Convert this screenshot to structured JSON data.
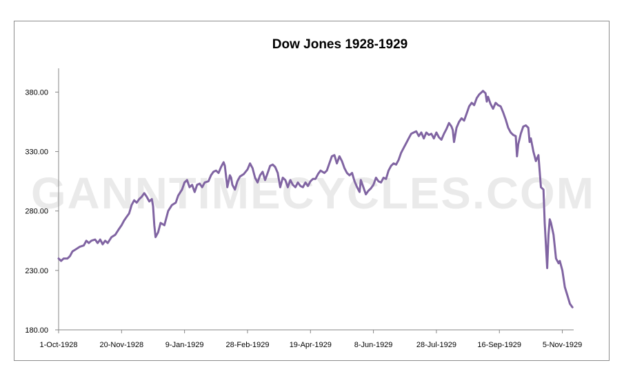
{
  "chart_data": {
    "type": "line",
    "title": "Dow Jones 1928-1929",
    "xlabel": "",
    "ylabel": "",
    "watermark": "GANNTIMECYCLES.COM",
    "line_color": "#8064a2",
    "x_range": [
      "1-Oct-1928",
      "14-Nov-1929"
    ],
    "ylim": [
      180,
      400
    ],
    "y_ticks": [
      180,
      230,
      280,
      330,
      380
    ],
    "y_tick_labels": [
      "180.00",
      "230.00",
      "280.00",
      "330.00",
      "380.00"
    ],
    "x_ticks": [
      "1-Oct-1928",
      "20-Nov-1928",
      "9-Jan-1929",
      "28-Feb-1929",
      "19-Apr-1929",
      "8-Jun-1929",
      "28-Jul-1929",
      "16-Sep-1929",
      "5-Nov-1929"
    ],
    "x_tick_labels": [
      "1-Oct-1928",
      "20-Nov-1928",
      "9-Jan-1929",
      "28-Feb-1929",
      "19-Apr-1929",
      "8-Jun-1929",
      "28-Jul-1929",
      "16-Sep-1929",
      "5-Nov-1929"
    ],
    "grid": false,
    "legend": "none",
    "series": [
      {
        "points": [
          [
            "1-Oct-1928",
            240
          ],
          [
            "3-Oct-1928",
            238
          ],
          [
            "5-Oct-1928",
            240
          ],
          [
            "8-Oct-1928",
            240
          ],
          [
            "10-Oct-1928",
            242
          ],
          [
            "12-Oct-1928",
            246
          ],
          [
            "15-Oct-1928",
            248
          ],
          [
            "18-Oct-1928",
            250
          ],
          [
            "21-Oct-1928",
            251
          ],
          [
            "23-Oct-1928",
            255
          ],
          [
            "25-Oct-1928",
            253
          ],
          [
            "27-Oct-1928",
            255
          ],
          [
            "30-Oct-1928",
            256
          ],
          [
            "1-Nov-1928",
            253
          ],
          [
            "3-Nov-1928",
            256
          ],
          [
            "5-Nov-1928",
            252
          ],
          [
            "7-Nov-1928",
            255
          ],
          [
            "9-Nov-1928",
            253
          ],
          [
            "12-Nov-1928",
            258
          ],
          [
            "15-Nov-1928",
            260
          ],
          [
            "18-Nov-1928",
            265
          ],
          [
            "20-Nov-1928",
            268
          ],
          [
            "22-Nov-1928",
            272
          ],
          [
            "24-Nov-1928",
            275
          ],
          [
            "26-Nov-1928",
            278
          ],
          [
            "28-Nov-1928",
            285
          ],
          [
            "30-Nov-1928",
            289
          ],
          [
            "2-Dec-1928",
            287
          ],
          [
            "4-Dec-1928",
            290
          ],
          [
            "6-Dec-1928",
            292
          ],
          [
            "8-Dec-1928",
            295
          ],
          [
            "10-Dec-1928",
            292
          ],
          [
            "12-Dec-1928",
            288
          ],
          [
            "14-Dec-1928",
            290
          ],
          [
            "15-Dec-1928",
            284
          ],
          [
            "16-Dec-1928",
            268
          ],
          [
            "17-Dec-1928",
            258
          ],
          [
            "19-Dec-1928",
            262
          ],
          [
            "21-Dec-1928",
            270
          ],
          [
            "24-Dec-1928",
            268
          ],
          [
            "27-Dec-1928",
            280
          ],
          [
            "30-Dec-1928",
            285
          ],
          [
            "2-Jan-1929",
            287
          ],
          [
            "4-Jan-1929",
            293
          ],
          [
            "7-Jan-1929",
            298
          ],
          [
            "9-Jan-1929",
            304
          ],
          [
            "11-Jan-1929",
            306
          ],
          [
            "13-Jan-1929",
            300
          ],
          [
            "15-Jan-1929",
            302
          ],
          [
            "17-Jan-1929",
            296
          ],
          [
            "19-Jan-1929",
            302
          ],
          [
            "21-Jan-1929",
            303
          ],
          [
            "23-Jan-1929",
            300
          ],
          [
            "25-Jan-1929",
            304
          ],
          [
            "28-Jan-1929",
            305
          ],
          [
            "30-Jan-1929",
            310
          ],
          [
            "1-Feb-1929",
            313
          ],
          [
            "3-Feb-1929",
            314
          ],
          [
            "5-Feb-1929",
            312
          ],
          [
            "7-Feb-1929",
            317
          ],
          [
            "9-Feb-1929",
            321
          ],
          [
            "10-Feb-1929",
            318
          ],
          [
            "11-Feb-1929",
            309
          ],
          [
            "12-Feb-1929",
            300
          ],
          [
            "14-Feb-1929",
            310
          ],
          [
            "15-Feb-1929",
            308
          ],
          [
            "16-Feb-1929",
            302
          ],
          [
            "18-Feb-1929",
            298
          ],
          [
            "20-Feb-1929",
            305
          ],
          [
            "22-Feb-1929",
            309
          ],
          [
            "25-Feb-1929",
            311
          ],
          [
            "28-Feb-1929",
            315
          ],
          [
            "2-Mar-1929",
            320
          ],
          [
            "4-Mar-1929",
            316
          ],
          [
            "6-Mar-1929",
            308
          ],
          [
            "8-Mar-1929",
            304
          ],
          [
            "10-Mar-1929",
            310
          ],
          [
            "12-Mar-1929",
            313
          ],
          [
            "14-Mar-1929",
            306
          ],
          [
            "16-Mar-1929",
            312
          ],
          [
            "18-Mar-1929",
            318
          ],
          [
            "20-Mar-1929",
            319
          ],
          [
            "22-Mar-1929",
            317
          ],
          [
            "24-Mar-1929",
            312
          ],
          [
            "26-Mar-1929",
            300
          ],
          [
            "28-Mar-1929",
            308
          ],
          [
            "30-Mar-1929",
            306
          ],
          [
            "1-Apr-1929",
            300
          ],
          [
            "3-Apr-1929",
            306
          ],
          [
            "5-Apr-1929",
            302
          ],
          [
            "7-Apr-1929",
            300
          ],
          [
            "9-Apr-1929",
            304
          ],
          [
            "11-Apr-1929",
            301
          ],
          [
            "13-Apr-1929",
            300
          ],
          [
            "15-Apr-1929",
            304
          ],
          [
            "17-Apr-1929",
            301
          ],
          [
            "19-Apr-1929",
            305
          ],
          [
            "21-Apr-1929",
            307
          ],
          [
            "23-Apr-1929",
            307
          ],
          [
            "25-Apr-1929",
            311
          ],
          [
            "27-Apr-1929",
            314
          ],
          [
            "30-Apr-1929",
            312
          ],
          [
            "2-May-1929",
            314
          ],
          [
            "4-May-1929",
            320
          ],
          [
            "6-May-1929",
            326
          ],
          [
            "8-May-1929",
            327
          ],
          [
            "10-May-1929",
            320
          ],
          [
            "12-May-1929",
            326
          ],
          [
            "14-May-1929",
            322
          ],
          [
            "16-May-1929",
            316
          ],
          [
            "18-May-1929",
            312
          ],
          [
            "20-May-1929",
            310
          ],
          [
            "22-May-1929",
            312
          ],
          [
            "24-May-1929",
            305
          ],
          [
            "26-May-1929",
            300
          ],
          [
            "28-May-1929",
            296
          ],
          [
            "29-May-1929",
            306
          ],
          [
            "31-May-1929",
            300
          ],
          [
            "2-Jun-1929",
            294
          ],
          [
            "4-Jun-1929",
            297
          ],
          [
            "6-Jun-1929",
            299
          ],
          [
            "8-Jun-1929",
            302
          ],
          [
            "10-Jun-1929",
            308
          ],
          [
            "12-Jun-1929",
            305
          ],
          [
            "14-Jun-1929",
            304
          ],
          [
            "16-Jun-1929",
            308
          ],
          [
            "18-Jun-1929",
            307
          ],
          [
            "20-Jun-1929",
            314
          ],
          [
            "22-Jun-1929",
            318
          ],
          [
            "24-Jun-1929",
            320
          ],
          [
            "26-Jun-1929",
            319
          ],
          [
            "28-Jun-1929",
            323
          ],
          [
            "30-Jun-1929",
            329
          ],
          [
            "2-Jul-1929",
            333
          ],
          [
            "4-Jul-1929",
            337
          ],
          [
            "6-Jul-1929",
            341
          ],
          [
            "8-Jul-1929",
            345
          ],
          [
            "10-Jul-1929",
            346
          ],
          [
            "12-Jul-1929",
            347
          ],
          [
            "14-Jul-1929",
            343
          ],
          [
            "16-Jul-1929",
            346
          ],
          [
            "18-Jul-1929",
            341
          ],
          [
            "20-Jul-1929",
            346
          ],
          [
            "22-Jul-1929",
            344
          ],
          [
            "24-Jul-1929",
            345
          ],
          [
            "26-Jul-1929",
            341
          ],
          [
            "28-Jul-1929",
            346
          ],
          [
            "30-Jul-1929",
            342
          ],
          [
            "1-Aug-1929",
            340
          ],
          [
            "3-Aug-1929",
            345
          ],
          [
            "5-Aug-1929",
            349
          ],
          [
            "7-Aug-1929",
            354
          ],
          [
            "9-Aug-1929",
            351
          ],
          [
            "10-Aug-1929",
            348
          ],
          [
            "11-Aug-1929",
            338
          ],
          [
            "13-Aug-1929",
            350
          ],
          [
            "15-Aug-1929",
            355
          ],
          [
            "17-Aug-1929",
            358
          ],
          [
            "19-Aug-1929",
            356
          ],
          [
            "21-Aug-1929",
            362
          ],
          [
            "23-Aug-1929",
            368
          ],
          [
            "25-Aug-1929",
            371
          ],
          [
            "27-Aug-1929",
            369
          ],
          [
            "29-Aug-1929",
            375
          ],
          [
            "31-Aug-1929",
            378
          ],
          [
            "2-Sep-1929",
            380
          ],
          [
            "3-Sep-1929",
            381
          ],
          [
            "5-Sep-1929",
            379
          ],
          [
            "6-Sep-1929",
            372
          ],
          [
            "7-Sep-1929",
            376
          ],
          [
            "9-Sep-1929",
            370
          ],
          [
            "11-Sep-1929",
            366
          ],
          [
            "13-Sep-1929",
            371
          ],
          [
            "15-Sep-1929",
            369
          ],
          [
            "17-Sep-1929",
            368
          ],
          [
            "19-Sep-1929",
            363
          ],
          [
            "21-Sep-1929",
            357
          ],
          [
            "23-Sep-1929",
            350
          ],
          [
            "25-Sep-1929",
            346
          ],
          [
            "27-Sep-1929",
            344
          ],
          [
            "29-Sep-1929",
            343
          ],
          [
            "30-Sep-1929",
            326
          ],
          [
            "1-Oct-1929",
            336
          ],
          [
            "3-Oct-1929",
            345
          ],
          [
            "5-Oct-1929",
            351
          ],
          [
            "7-Oct-1929",
            352
          ],
          [
            "9-Oct-1929",
            350
          ],
          [
            "10-Oct-1929",
            338
          ],
          [
            "11-Oct-1929",
            341
          ],
          [
            "13-Oct-1929",
            330
          ],
          [
            "15-Oct-1929",
            322
          ],
          [
            "17-Oct-1929",
            327
          ],
          [
            "19-Oct-1929",
            300
          ],
          [
            "21-Oct-1929",
            298
          ],
          [
            "22-Oct-1929",
            270
          ],
          [
            "24-Oct-1929",
            232
          ],
          [
            "25-Oct-1929",
            260
          ],
          [
            "26-Oct-1929",
            273
          ],
          [
            "27-Oct-1929",
            270
          ],
          [
            "29-Oct-1929",
            260
          ],
          [
            "31-Oct-1929",
            240
          ],
          [
            "2-Nov-1929",
            236
          ],
          [
            "3-Nov-1929",
            238
          ],
          [
            "5-Nov-1929",
            230
          ],
          [
            "7-Nov-1929",
            216
          ],
          [
            "9-Nov-1929",
            209
          ],
          [
            "11-Nov-1929",
            202
          ],
          [
            "13-Nov-1929",
            199
          ]
        ]
      }
    ]
  }
}
